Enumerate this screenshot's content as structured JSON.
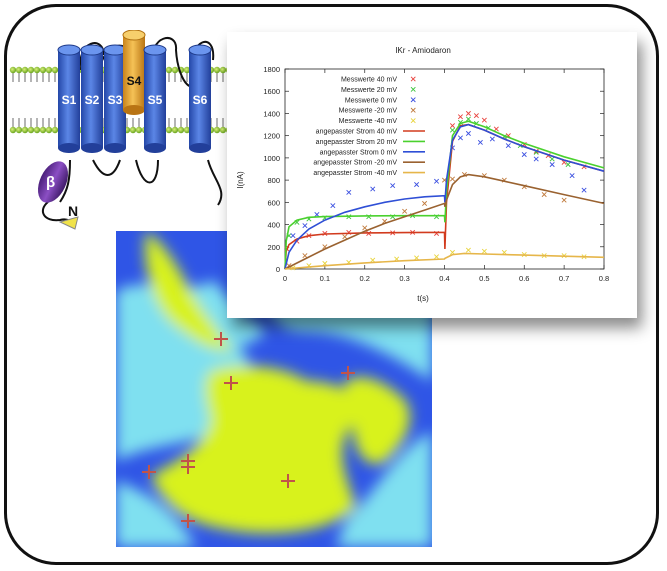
{
  "channel": {
    "segments": [
      "S1",
      "S2",
      "S3",
      "S4",
      "S5",
      "S6"
    ],
    "beta_label": "β",
    "n_label": "N",
    "colors": {
      "segment": "#3a63c8",
      "voltage_sensor": "#e8a42c",
      "beta": "#6a2d9a",
      "membrane": "#9acd32"
    }
  },
  "simulation": {
    "colors": {
      "low": "#2f55e6",
      "mid": "#7fe0f0",
      "high": "#d8f21c"
    },
    "marker_count": 8
  },
  "chart_data": {
    "type": "line",
    "title": "IKr - Amiodaron",
    "xlabel": "t(s)",
    "ylabel": "I(nA)",
    "xlim": [
      0,
      0.8
    ],
    "ylim": [
      0,
      1800
    ],
    "xticks": [
      0,
      0.1,
      0.2,
      0.3,
      0.4,
      0.5,
      0.6,
      0.7,
      0.8
    ],
    "yticks": [
      0,
      200,
      400,
      600,
      800,
      1000,
      1200,
      1400,
      1600,
      1800
    ],
    "legend_position": "top-left",
    "grid": false,
    "series": [
      {
        "name": "Messwerte 40 mV",
        "kind": "markers",
        "color": "#e8413c",
        "x": [
          0.005,
          0.03,
          0.06,
          0.1,
          0.16,
          0.21,
          0.27,
          0.32,
          0.38,
          0.42,
          0.44,
          0.46,
          0.48,
          0.5,
          0.53,
          0.56,
          0.6,
          0.63,
          0.66,
          0.7,
          0.75
        ],
        "y": [
          180,
          250,
          300,
          320,
          330,
          320,
          325,
          330,
          320,
          1290,
          1370,
          1400,
          1380,
          1340,
          1260,
          1200,
          1120,
          1060,
          1020,
          960,
          920
        ]
      },
      {
        "name": "Messwerte 20 mV",
        "kind": "markers",
        "color": "#3cc43c",
        "x": [
          0.01,
          0.03,
          0.06,
          0.1,
          0.16,
          0.21,
          0.27,
          0.32,
          0.38,
          0.42,
          0.44,
          0.46,
          0.48,
          0.51,
          0.55,
          0.59,
          0.63,
          0.67,
          0.71
        ],
        "y": [
          300,
          420,
          450,
          460,
          470,
          470,
          470,
          480,
          470,
          1250,
          1320,
          1350,
          1310,
          1270,
          1190,
          1110,
          1050,
          990,
          940
        ]
      },
      {
        "name": "Messwerte 0 mV",
        "kind": "markers",
        "color": "#3a4fe0",
        "x": [
          0.02,
          0.05,
          0.08,
          0.12,
          0.16,
          0.22,
          0.27,
          0.33,
          0.38,
          0.42,
          0.44,
          0.46,
          0.49,
          0.52,
          0.56,
          0.6,
          0.63,
          0.67,
          0.72,
          0.75
        ],
        "y": [
          300,
          390,
          490,
          570,
          690,
          720,
          750,
          760,
          790,
          1090,
          1180,
          1220,
          1140,
          1170,
          1110,
          1030,
          990,
          940,
          840,
          710
        ]
      },
      {
        "name": "Messwerte -20 mV",
        "kind": "markers",
        "color": "#c07a3c",
        "x": [
          0.01,
          0.05,
          0.1,
          0.15,
          0.2,
          0.25,
          0.3,
          0.35,
          0.4,
          0.42,
          0.45,
          0.5,
          0.55,
          0.6,
          0.65,
          0.7
        ],
        "y": [
          30,
          120,
          200,
          290,
          370,
          430,
          520,
          590,
          800,
          810,
          850,
          840,
          800,
          740,
          670,
          620
        ]
      },
      {
        "name": "Messwerte -40 mV",
        "kind": "markers",
        "color": "#e8d43c",
        "x": [
          0.02,
          0.06,
          0.1,
          0.16,
          0.22,
          0.28,
          0.33,
          0.38,
          0.42,
          0.46,
          0.5,
          0.55,
          0.6,
          0.65,
          0.7,
          0.75
        ],
        "y": [
          10,
          30,
          50,
          60,
          80,
          90,
          100,
          110,
          150,
          170,
          160,
          150,
          130,
          120,
          120,
          110
        ]
      },
      {
        "name": "angepasster Strom 40 mV",
        "kind": "line",
        "color": "#d23b1e",
        "x": [
          0,
          0.003,
          0.01,
          0.03,
          0.06,
          0.1,
          0.2,
          0.3,
          0.4,
          0.401,
          0.405,
          0.42,
          0.44,
          0.46,
          0.5,
          0.55,
          0.6,
          0.7,
          0.8
        ],
        "y": [
          0,
          160,
          220,
          270,
          300,
          315,
          325,
          328,
          330,
          180,
          600,
          1150,
          1290,
          1300,
          1250,
          1170,
          1100,
          980,
          880
        ]
      },
      {
        "name": "angepasster Strom 20 mV",
        "kind": "line",
        "color": "#4ad12e",
        "x": [
          0,
          0.003,
          0.01,
          0.03,
          0.06,
          0.1,
          0.2,
          0.3,
          0.4,
          0.401,
          0.405,
          0.42,
          0.44,
          0.46,
          0.5,
          0.55,
          0.6,
          0.7,
          0.8
        ],
        "y": [
          0,
          250,
          380,
          440,
          465,
          472,
          478,
          480,
          480,
          420,
          700,
          1200,
          1310,
          1330,
          1280,
          1200,
          1130,
          1010,
          910
        ]
      },
      {
        "name": "angepasster Strom 0 mV",
        "kind": "line",
        "color": "#2f4fd6",
        "x": [
          0,
          0.01,
          0.03,
          0.06,
          0.1,
          0.15,
          0.2,
          0.25,
          0.3,
          0.35,
          0.4,
          0.401,
          0.405,
          0.42,
          0.44,
          0.46,
          0.5,
          0.55,
          0.6,
          0.7,
          0.8
        ],
        "y": [
          0,
          150,
          260,
          360,
          440,
          510,
          560,
          600,
          630,
          650,
          660,
          600,
          800,
          1160,
          1280,
          1300,
          1250,
          1170,
          1100,
          980,
          880
        ]
      },
      {
        "name": "angepasster Strom -20 mV",
        "kind": "line",
        "color": "#9a6230",
        "x": [
          0,
          0.05,
          0.1,
          0.15,
          0.2,
          0.25,
          0.3,
          0.35,
          0.4,
          0.401,
          0.405,
          0.42,
          0.44,
          0.46,
          0.5,
          0.55,
          0.6,
          0.7,
          0.8
        ],
        "y": [
          0,
          90,
          180,
          260,
          340,
          410,
          470,
          530,
          590,
          560,
          620,
          760,
          830,
          850,
          830,
          790,
          750,
          670,
          590
        ]
      },
      {
        "name": "angepasster Strom -40 mV",
        "kind": "line",
        "color": "#e6b64a",
        "x": [
          0,
          0.05,
          0.1,
          0.2,
          0.3,
          0.4,
          0.401,
          0.42,
          0.45,
          0.5,
          0.6,
          0.7,
          0.8
        ],
        "y": [
          0,
          15,
          30,
          55,
          75,
          90,
          95,
          130,
          140,
          135,
          125,
          115,
          105
        ]
      }
    ]
  }
}
